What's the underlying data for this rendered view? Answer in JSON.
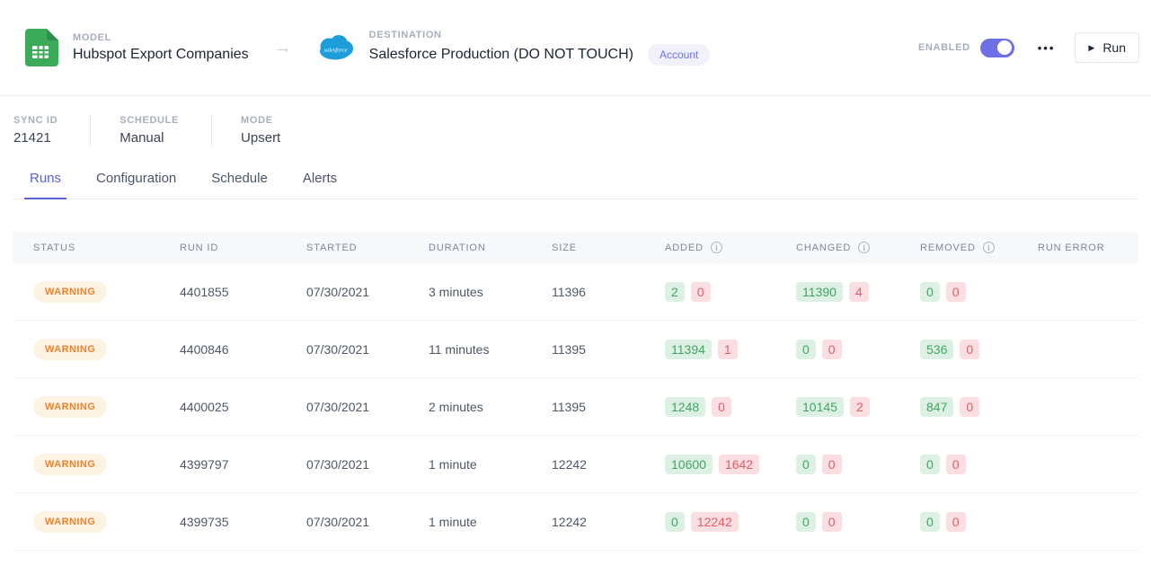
{
  "header": {
    "model": {
      "label": "MODEL",
      "name": "Hubspot Export Companies"
    },
    "destination": {
      "label": "DESTINATION",
      "name": "Salesforce Production (DO NOT TOUCH)",
      "badge": "Account"
    },
    "enabled_label": "ENABLED",
    "enabled_state": true,
    "more_menu": "•••",
    "run_button": {
      "icon": "▶",
      "label": "Run"
    }
  },
  "sync_meta": [
    {
      "label": "SYNC ID",
      "value": "21421"
    },
    {
      "label": "SCHEDULE",
      "value": "Manual"
    },
    {
      "label": "MODE",
      "value": "Upsert"
    }
  ],
  "tabs": [
    {
      "label": "Runs",
      "active": true
    },
    {
      "label": "Configuration",
      "active": false
    },
    {
      "label": "Schedule",
      "active": false
    },
    {
      "label": "Alerts",
      "active": false
    }
  ],
  "table": {
    "columns": [
      {
        "label": "STATUS",
        "info": false
      },
      {
        "label": "RUN ID",
        "info": false
      },
      {
        "label": "STARTED",
        "info": false
      },
      {
        "label": "DURATION",
        "info": false
      },
      {
        "label": "SIZE",
        "info": false
      },
      {
        "label": "ADDED",
        "info": true
      },
      {
        "label": "CHANGED",
        "info": true
      },
      {
        "label": "REMOVED",
        "info": true
      },
      {
        "label": "RUN ERROR",
        "info": false
      }
    ],
    "rows": [
      {
        "status": "WARNING",
        "run_id": "4401855",
        "started": "07/30/2021",
        "duration": "3 minutes",
        "size": "11396",
        "added": [
          "2",
          "0"
        ],
        "changed": [
          "11390",
          "4"
        ],
        "removed": [
          "0",
          "0"
        ],
        "run_error": ""
      },
      {
        "status": "WARNING",
        "run_id": "4400846",
        "started": "07/30/2021",
        "duration": "11 minutes",
        "size": "11395",
        "added": [
          "11394",
          "1"
        ],
        "changed": [
          "0",
          "0"
        ],
        "removed": [
          "536",
          "0"
        ],
        "run_error": ""
      },
      {
        "status": "WARNING",
        "run_id": "4400025",
        "started": "07/30/2021",
        "duration": "2 minutes",
        "size": "11395",
        "added": [
          "1248",
          "0"
        ],
        "changed": [
          "10145",
          "2"
        ],
        "removed": [
          "847",
          "0"
        ],
        "run_error": ""
      },
      {
        "status": "WARNING",
        "run_id": "4399797",
        "started": "07/30/2021",
        "duration": "1 minute",
        "size": "12242",
        "added": [
          "10600",
          "1642"
        ],
        "changed": [
          "0",
          "0"
        ],
        "removed": [
          "0",
          "0"
        ],
        "run_error": ""
      },
      {
        "status": "WARNING",
        "run_id": "4399735",
        "started": "07/30/2021",
        "duration": "1 minute",
        "size": "12242",
        "added": [
          "0",
          "12242"
        ],
        "changed": [
          "0",
          "0"
        ],
        "removed": [
          "0",
          "0"
        ],
        "run_error": ""
      }
    ]
  },
  "colors": {
    "accent_purple": "#6c70e4",
    "tab_active": "#5c61d6",
    "warning_text": "#ed822c",
    "warning_bg": "#fdf3e3",
    "diff_ok_text": "#41a562",
    "diff_ok_bg": "#dcf1e3",
    "diff_fail_text": "#e25c67",
    "diff_fail_bg": "#fadee2",
    "model_icon_green": "#3bab5a",
    "salesforce_blue": "#1e9ddb"
  }
}
